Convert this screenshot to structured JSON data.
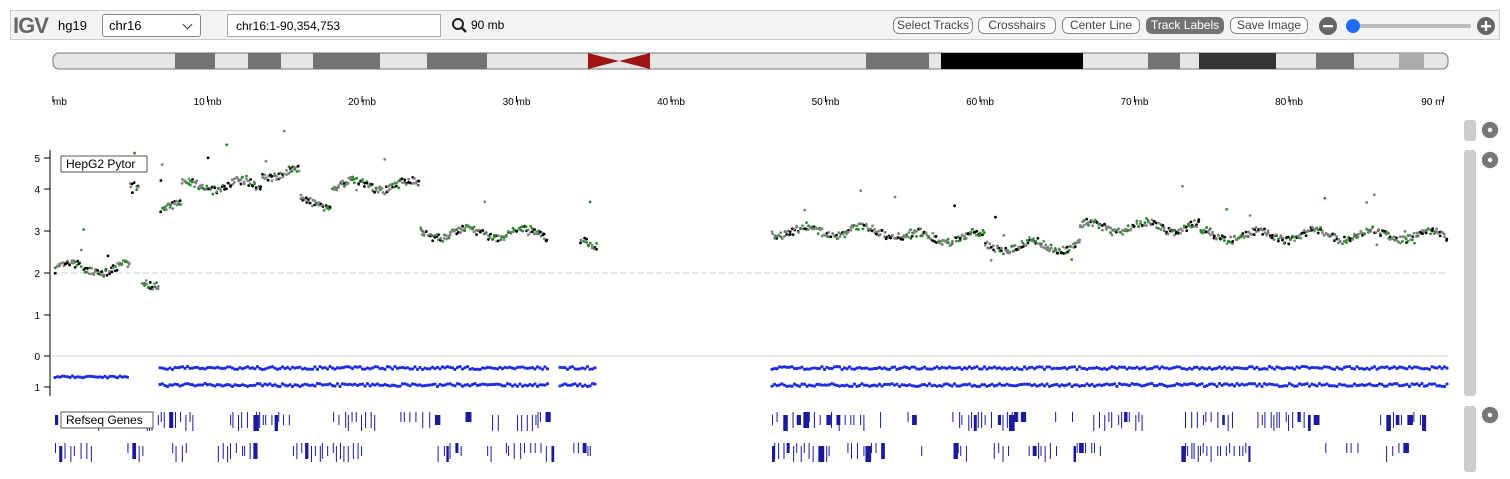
{
  "toolbar": {
    "logo": "IGV",
    "genome": "hg19",
    "chromosome": "chr16",
    "locus": "chr16:1-90,354,753",
    "window_size": "90 mb",
    "buttons": [
      "Select Tracks",
      "Crosshairs",
      "Center Line",
      "Track Labels",
      "Save Image"
    ]
  },
  "ruler": {
    "ticks": [
      "mb",
      "10 mb",
      "20 mb",
      "30 mb",
      "40 mb",
      "50 mb",
      "60 mb",
      "70 mb",
      "80 mb",
      "90 m"
    ]
  },
  "tracks": [
    {
      "label": "HepG2 Pytor",
      "axis_labels": [
        "5",
        "4",
        "3",
        "2",
        "1",
        "0",
        "1"
      ]
    },
    {
      "label": "Refseq Genes"
    }
  ]
}
